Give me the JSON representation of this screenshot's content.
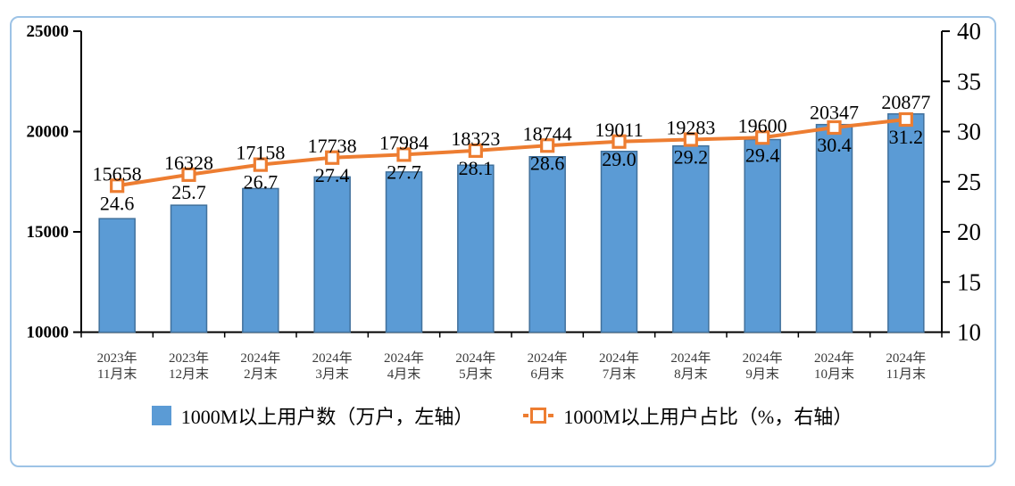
{
  "frame": {
    "border_color": "#9DC3E6",
    "background": "#ffffff"
  },
  "chart_data": {
    "type": "combo-bar-line",
    "categories": [
      "2023年11月末",
      "2023年12月末",
      "2024年2月末",
      "2024年3月末",
      "2024年4月末",
      "2024年5月末",
      "2024年6月末",
      "2024年7月末",
      "2024年8月末",
      "2024年9月末",
      "2024年10月末",
      "2024年11月末"
    ],
    "series": [
      {
        "name": "1000M以上用户数（万户，左轴）",
        "type": "bar",
        "axis": "left",
        "values": [
          15658,
          16328,
          17158,
          17738,
          17984,
          18323,
          18744,
          19011,
          19283,
          19600,
          20347,
          20877
        ],
        "labels": [
          "15658",
          "16328",
          "17158",
          "17738",
          "17984",
          "18323",
          "18744",
          "19011",
          "19283",
          "19600",
          "20347",
          "20877"
        ],
        "color": "#5B9BD5",
        "border_color": "#41719C"
      },
      {
        "name": "1000M以上用户占比（%，右轴）",
        "type": "line",
        "axis": "right",
        "values": [
          24.6,
          25.7,
          26.7,
          27.4,
          27.7,
          28.1,
          28.6,
          29.0,
          29.2,
          29.4,
          30.4,
          31.2
        ],
        "labels": [
          "24.6",
          "25.7",
          "26.7",
          "27.4",
          "27.7",
          "28.1",
          "28.6",
          "29.0",
          "29.2",
          "29.4",
          "30.4",
          "31.2"
        ],
        "color": "#ED7D31",
        "marker": "square-white-fill"
      }
    ],
    "left_axis": {
      "min": 10000,
      "max": 25000,
      "ticks": [
        10000,
        15000,
        20000,
        25000
      ],
      "tick_labels": [
        "10000",
        "15000",
        "20000",
        "25000"
      ]
    },
    "right_axis": {
      "min": 10,
      "max": 40,
      "ticks": [
        10,
        15,
        20,
        25,
        30,
        35,
        40
      ],
      "tick_labels": [
        "10",
        "15",
        "20",
        "25",
        "30",
        "35",
        "40"
      ]
    },
    "gridlines": false,
    "legend_position": "bottom",
    "axis_color": "#000000",
    "x_label_color": "#3a3a3a"
  },
  "legend": {
    "items": [
      {
        "label": "1000M以上用户数（万户，左轴）",
        "marker": "blue-square"
      },
      {
        "label": "1000M以上用户占比（%，右轴）",
        "marker": "orange-dash-square"
      }
    ]
  }
}
